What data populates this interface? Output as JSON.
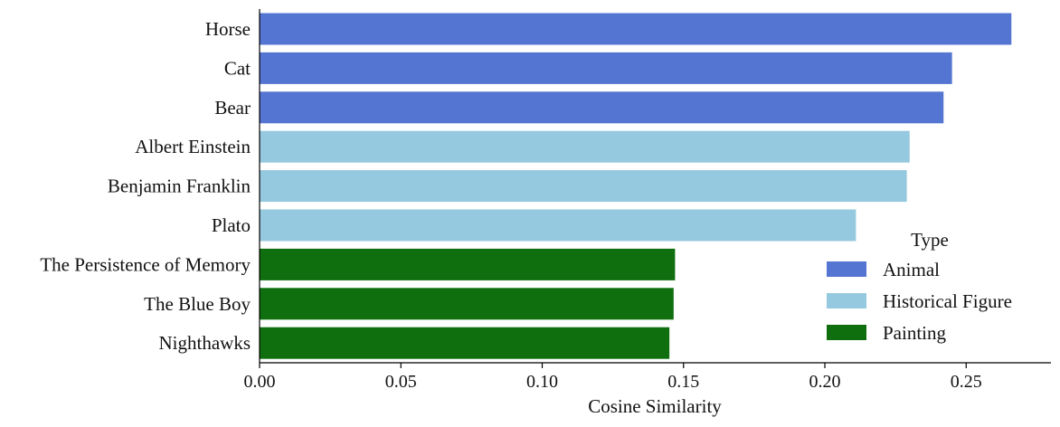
{
  "chart_data": {
    "type": "bar",
    "orientation": "horizontal",
    "xlabel": "Cosine Similarity",
    "ylabel": "",
    "xlim": [
      0,
      0.28
    ],
    "xticks": [
      0.0,
      0.05,
      0.1,
      0.15,
      0.2,
      0.25
    ],
    "xtick_labels": [
      "0.00",
      "0.05",
      "0.10",
      "0.15",
      "0.20",
      "0.25"
    ],
    "grid": false,
    "legend_position": "lower-right",
    "legend_title": "Type",
    "groups": [
      {
        "name": "Animal",
        "color": "#5575d2"
      },
      {
        "name": "Historical Figure",
        "color": "#95c9df"
      },
      {
        "name": "Painting",
        "color": "#0f6f0f"
      }
    ],
    "bars": [
      {
        "label": "Horse",
        "value": 0.266,
        "group": "Animal"
      },
      {
        "label": "Cat",
        "value": 0.245,
        "group": "Animal"
      },
      {
        "label": "Bear",
        "value": 0.242,
        "group": "Animal"
      },
      {
        "label": "Albert Einstein",
        "value": 0.23,
        "group": "Historical Figure"
      },
      {
        "label": "Benjamin Franklin",
        "value": 0.229,
        "group": "Historical Figure"
      },
      {
        "label": "Plato",
        "value": 0.211,
        "group": "Historical Figure"
      },
      {
        "label": "The Persistence of Memory",
        "value": 0.147,
        "group": "Painting"
      },
      {
        "label": "The Blue Boy",
        "value": 0.1465,
        "group": "Painting"
      },
      {
        "label": "Nighthawks",
        "value": 0.145,
        "group": "Painting"
      }
    ]
  }
}
